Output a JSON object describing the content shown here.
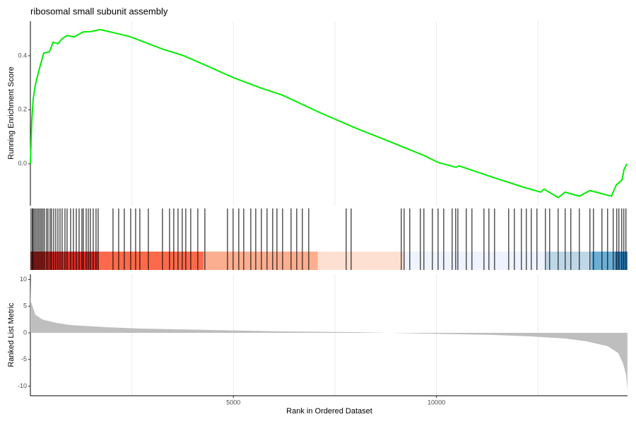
{
  "chart_data": [
    {
      "type": "line",
      "title": "ribosomal small subunit assembly",
      "ylabel": "Running Enrichment Score",
      "color": "#00ee00",
      "x": [
        1,
        35,
        70,
        120,
        210,
        330,
        470,
        560,
        680,
        780,
        900,
        1080,
        1300,
        1510,
        1720,
        2040,
        2470,
        2730,
        3250,
        3780,
        4300,
        5000,
        5690,
        6210,
        7080,
        7950,
        8820,
        9690,
        10040,
        10480,
        10560,
        11430,
        12130,
        12570,
        12650,
        13000,
        13170,
        13520,
        13780,
        14310,
        14430,
        14570,
        14620,
        14690
      ],
      "values": [
        0,
        0.16,
        0.24,
        0.29,
        0.345,
        0.41,
        0.415,
        0.45,
        0.445,
        0.463,
        0.475,
        0.47,
        0.488,
        0.49,
        0.497,
        0.486,
        0.47,
        0.455,
        0.425,
        0.4,
        0.366,
        0.319,
        0.28,
        0.254,
        0.193,
        0.136,
        0.084,
        0.031,
        0.005,
        -0.013,
        -0.008,
        -0.052,
        -0.086,
        -0.105,
        -0.094,
        -0.125,
        -0.105,
        -0.12,
        -0.099,
        -0.12,
        -0.078,
        -0.06,
        -0.021,
        0
      ],
      "xlim": [
        1,
        14706
      ],
      "ylim": [
        -0.155,
        0.528
      ],
      "yticks": [
        {
          "value": 0,
          "label": "0.0"
        },
        0.2,
        0.4
      ],
      "xticks": [
        5000,
        10000
      ],
      "xminor": [
        2500,
        7500,
        12500
      ],
      "show_xtick_labels": false,
      "grid": true
    },
    {
      "type": "rug",
      "color": "#000000",
      "x": [
        17,
        52,
        70,
        104,
        139,
        174,
        209,
        244,
        278,
        313,
        348,
        400,
        435,
        487,
        522,
        574,
        626,
        679,
        731,
        783,
        853,
        905,
        992,
        1061,
        1131,
        1201,
        1270,
        1305,
        1375,
        1427,
        1479,
        1549,
        1618,
        1670,
        2036,
        2175,
        2314,
        2471,
        2593,
        2697,
        2906,
        3254,
        3428,
        3532,
        3637,
        3741,
        3828,
        3950,
        4124,
        4298,
        4855,
        4994,
        5133,
        5255,
        5429,
        5551,
        5690,
        5829,
        5968,
        6073,
        6212,
        6421,
        6560,
        6699,
        6856,
        7778,
        7900,
        9135,
        9205,
        9344,
        9605,
        9692,
        9901,
        10041,
        10180,
        10388,
        10475,
        10528,
        10736,
        10875,
        11171,
        11293,
        11432,
        11780,
        11920,
        12093,
        12215,
        12337,
        12476,
        12685,
        12789,
        12998,
        13172,
        13311,
        13520,
        13781,
        13868,
        14077,
        14216,
        14355,
        14442,
        14494,
        14564,
        14616,
        14668
      ],
      "xlim": [
        1,
        14706
      ],
      "band_edges": [
        1,
        1688,
        4263,
        7081,
        9205,
        12702,
        13816,
        14390,
        14706
      ],
      "band_colors": [
        "#de2d26",
        "#fb6a4a",
        "#fcae91",
        "#fee0d2",
        "#eff3ff",
        "#bdd7e7",
        "#6baed6",
        "#3182bd"
      ]
    },
    {
      "type": "area",
      "xlabel": "Rank in Ordered Dataset",
      "ylabel": "Ranked List Metric",
      "color": "#bebebe",
      "x": [
        1,
        10,
        35,
        122,
        296,
        644,
        992,
        1862,
        2732,
        4472,
        6212,
        7952,
        8822,
        9692,
        11432,
        12302,
        13172,
        13694,
        14216,
        14477,
        14599,
        14668,
        14703
      ],
      "values": [
        9.5,
        6,
        5.4,
        3.4,
        2.5,
        1.85,
        1.45,
        1.06,
        0.8,
        0.53,
        0.26,
        0.13,
        0,
        -0.13,
        -0.4,
        -0.66,
        -1.06,
        -1.6,
        -2.5,
        -3.8,
        -5.8,
        -7.8,
        -10.7
      ],
      "xlim": [
        1,
        14706
      ],
      "ylim": [
        -11.8,
        11.0
      ],
      "yticks": [
        10,
        5,
        0,
        -5,
        -10
      ],
      "xticks": [
        5000,
        10000
      ],
      "xminor": [
        2500,
        7500,
        12500
      ],
      "show_xtick_labels": true,
      "grid": true
    }
  ]
}
